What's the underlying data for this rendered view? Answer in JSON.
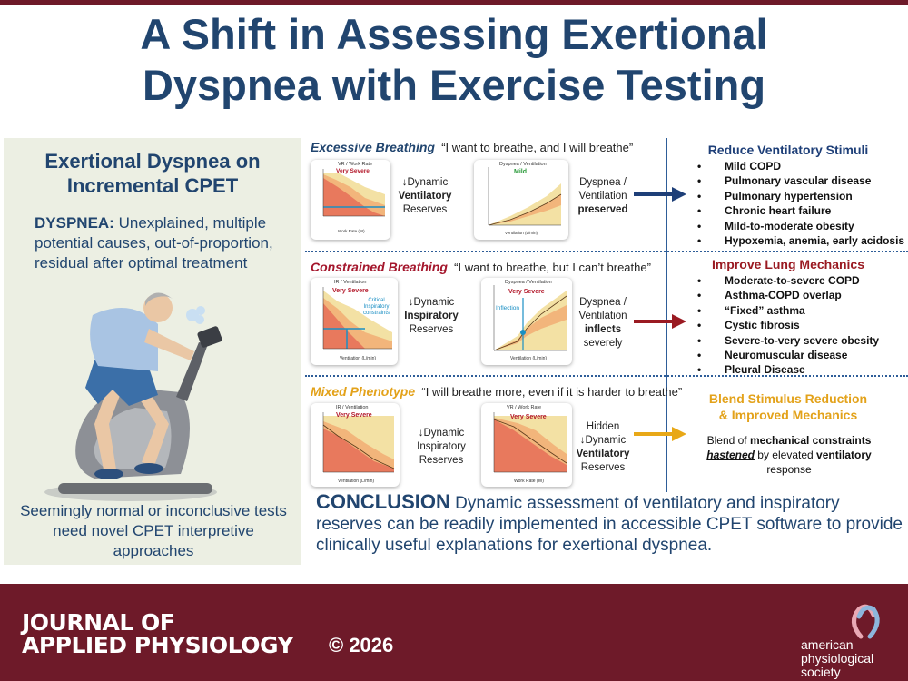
{
  "title": {
    "line1": "A Shift in Assessing Exertional",
    "line2": "Dyspnea with Exercise Testing"
  },
  "left_panel": {
    "title_line1": "Exertional Dyspnea on",
    "title_line2": "Incremental CPET",
    "dyspnea_label": "DYSPNEA:",
    "dyspnea_text": " Unexplained, multiple potential causes, out-of-proportion, residual after optimal treatment",
    "bottom_text": "Seemingly normal or inconclusive tests need novel CPET interpretive approaches"
  },
  "rows": [
    {
      "phenotype": "Excessive Breathing",
      "quote": "“I want to breathe, and I will breathe”",
      "chart1": {
        "title": "VR / Work Rate",
        "severity": "Very Severe",
        "xlabel": "Work Rate (W)",
        "yticks": [
          "100",
          "80",
          "60",
          "40",
          "20",
          "0"
        ],
        "xticks": [
          "0",
          "35",
          "70",
          "105",
          "140"
        ]
      },
      "reserve_text": [
        "↓Dynamic",
        "Ventilatory",
        "Reserves"
      ],
      "chart2": {
        "title": "Dyspnea / Ventilation",
        "severity": "Mild",
        "xlabel": "Ventilation (L/min)",
        "yticks": [
          "10",
          "8",
          "6",
          "4",
          "2",
          "0"
        ],
        "xticks": [
          "13.7",
          "28.7",
          "43.7",
          "75"
        ]
      },
      "dyspnea_text": [
        "Dyspnea /",
        "Ventilation",
        "preserved"
      ],
      "right_title": "Reduce Ventilatory Stimuli",
      "right_items": [
        "Mild COPD",
        "Pulmonary vascular disease",
        "Pulmonary hypertension",
        "Chronic heart failure",
        "Mild-to-moderate obesity",
        "Hypoxemia, anemia, early acidosis"
      ],
      "color": "#1e3f78"
    },
    {
      "phenotype": "Constrained Breathing",
      "quote": "“I want to breathe, but I can’t breathe”",
      "chart1": {
        "title": "IR / Ventilation",
        "severity": "Very Severe",
        "annotation": [
          "Critical",
          "Inspiratory",
          "constraints"
        ],
        "xlabel": "Ventilation (L/min)",
        "yticks": [
          "100",
          "80",
          "60",
          "40",
          "20",
          "0"
        ],
        "xticks": [
          "15",
          "30",
          "45",
          "60"
        ]
      },
      "reserve_text": [
        "↓Dynamic",
        "Inspiratory",
        "Reserves"
      ],
      "chart2": {
        "title": "Dyspnea / Ventilation",
        "severity": "Very Severe",
        "annotation": "Inflection",
        "xlabel": "Ventilation (L/min)",
        "yticks": [
          "10",
          "8",
          "6",
          "4",
          "2",
          "0"
        ],
        "xticks": [
          "15",
          "30",
          "45",
          "60"
        ]
      },
      "dyspnea_text": [
        "Dyspnea /",
        "Ventilation",
        "inflects",
        "severely"
      ],
      "right_title": "Improve Lung Mechanics",
      "right_items": [
        "Moderate-to-severe COPD",
        "Asthma-COPD overlap",
        "“Fixed” asthma",
        "Cystic fibrosis",
        "Severe-to-very severe obesity",
        "Neuromuscular disease",
        "Pleural Disease"
      ],
      "color": "#9a1a22"
    },
    {
      "phenotype": "Mixed Phenotype",
      "quote": "“I will breathe more, even if it is harder to breathe”",
      "chart1": {
        "title": "IR / Ventilation",
        "severity": "Very Severe",
        "xlabel": "Ventilation (L/min)",
        "yticks": [
          "100",
          "80",
          "60",
          "40",
          "20",
          "0"
        ],
        "xticks": [
          "10",
          "25",
          "40",
          "55"
        ]
      },
      "reserve_text": [
        "↓Dynamic",
        "Inspiratory",
        "Reserves"
      ],
      "chart2": {
        "title": "VR / Work Rate",
        "severity": "Very Severe",
        "xlabel": "Work Rate (W)",
        "yticks": [
          "100",
          "80",
          "60",
          "40",
          "20",
          "0"
        ],
        "xticks": [
          "0",
          "25",
          "50",
          "75",
          "100"
        ]
      },
      "dyspnea_text": [
        "Hidden",
        "↓Dynamic",
        "Ventilatory",
        "Reserves"
      ],
      "right_title_line1": "Blend Stimulus Reduction",
      "right_title_line2": "& Improved Mechanics",
      "right_text": {
        "t1": "Blend of ",
        "b1": "mechanical constraints",
        "u1": "hastened",
        "t2": " by elevated ",
        "b2": "ventilatory",
        "t3": "response"
      },
      "color": "#e8a817"
    }
  ],
  "conclusion": {
    "label": "CONCLUSION",
    "text": " Dynamic assessment of ventilatory and inspiratory reserves can be readily implemented in accessible CPET software to provide clinically useful explanations for exertional dyspnea."
  },
  "footer": {
    "journal_line1": "JOURNAL OF",
    "journal_line2": "APPLIED PHYSIOLOGY",
    "copyright": "© 2026",
    "society_line1": "american",
    "society_line2": "physiological",
    "society_line3": "society"
  }
}
